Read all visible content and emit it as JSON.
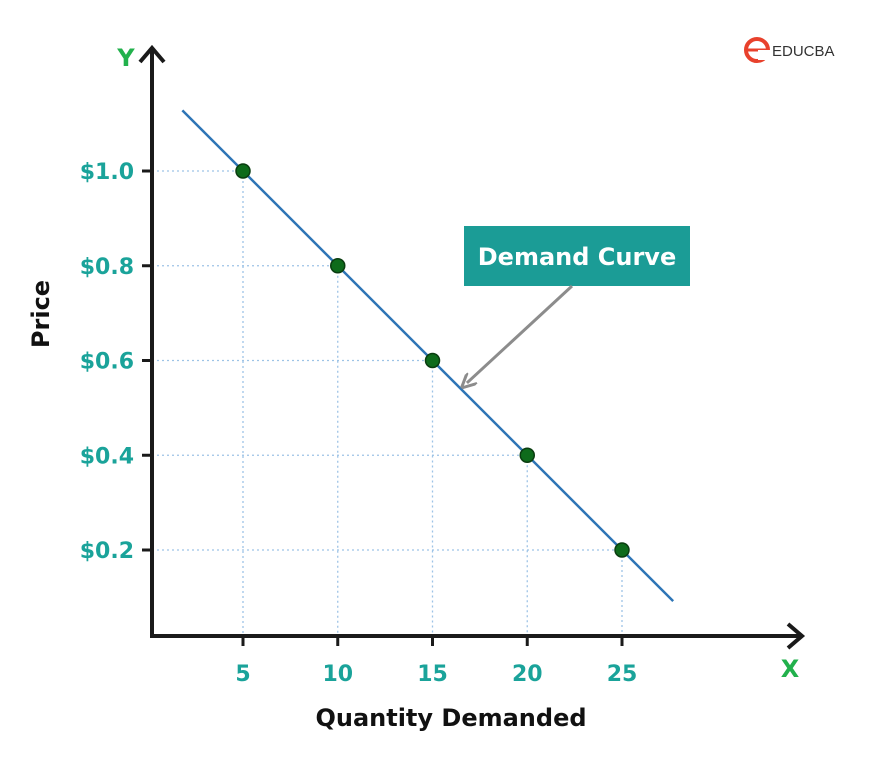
{
  "brand": {
    "name": "EDUCBA",
    "color": "#e8412c"
  },
  "colors": {
    "tick_label": "#1aa39a",
    "axis_letter": "#22b14c",
    "line": "#2e75b6",
    "point_fill": "#0e6b1b",
    "callout_bg": "#1b9c96",
    "grid": "#9dc3e6"
  },
  "chart_data": {
    "type": "line",
    "title": "",
    "xlabel": "Quantity Demanded",
    "ylabel": "Price",
    "x_axis_letter": "X",
    "y_axis_letter": "Y",
    "grid": true,
    "xlim": [
      0,
      32
    ],
    "ylim": [
      0,
      1.2
    ],
    "x_ticks": [
      5,
      10,
      15,
      20,
      25
    ],
    "x_tick_labels": [
      "5",
      "10",
      "15",
      "20",
      "25"
    ],
    "y_ticks": [
      0.2,
      0.4,
      0.6,
      0.8,
      1.0
    ],
    "y_tick_labels": [
      "$0.2",
      "$0.4",
      "$0.6",
      "$0.8",
      "$1.0"
    ],
    "series": [
      {
        "points": [
          [
            5,
            1.0
          ],
          [
            10,
            0.8
          ],
          [
            15,
            0.6
          ],
          [
            20,
            0.4
          ],
          [
            25,
            0.2
          ]
        ]
      }
    ],
    "line_extent": {
      "x": [
        1.8,
        27.7
      ]
    },
    "annotations": [
      {
        "text": "Demand Curve",
        "points_to": [
          16.5,
          0.54
        ]
      }
    ]
  }
}
